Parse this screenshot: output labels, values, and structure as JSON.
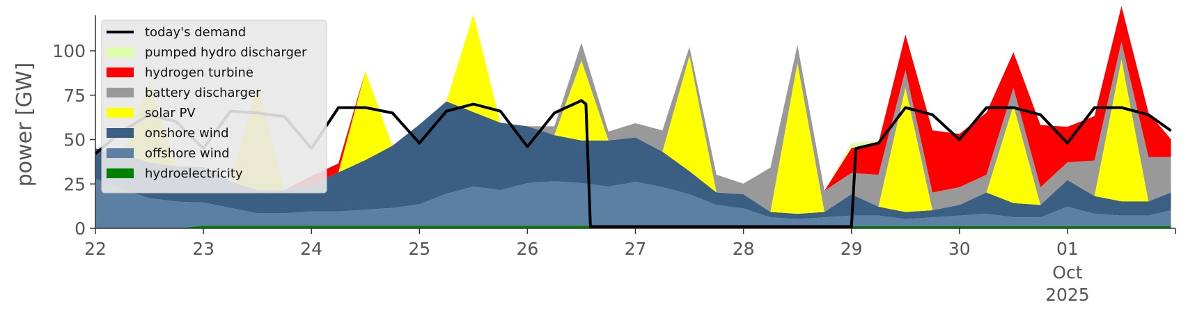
{
  "chart_data": {
    "type": "area",
    "ylabel": "power [GW]",
    "xlabel": "",
    "title": "",
    "ylim": [
      0,
      120
    ],
    "xlim": [
      "2025-09-22",
      "2025-10-02"
    ],
    "y_ticks": [
      0,
      25,
      50,
      75,
      100
    ],
    "x_ticks": [
      {
        "date": "2025-09-22",
        "label": "22"
      },
      {
        "date": "2025-09-23",
        "label": "23"
      },
      {
        "date": "2025-09-24",
        "label": "24"
      },
      {
        "date": "2025-09-25",
        "label": "25"
      },
      {
        "date": "2025-09-26",
        "label": "26"
      },
      {
        "date": "2025-09-27",
        "label": "27"
      },
      {
        "date": "2025-09-28",
        "label": "28"
      },
      {
        "date": "2025-09-29",
        "label": "29"
      },
      {
        "date": "2025-09-30",
        "label": "30"
      },
      {
        "date": "2025-10-01",
        "label": "01",
        "sublabels": [
          "Oct",
          "2025"
        ]
      }
    ],
    "grid": false,
    "legend": "top-left",
    "x": [
      "2025-09-22 00:00",
      "2025-09-22 06:00",
      "2025-09-22 12:00",
      "2025-09-22 18:00",
      "2025-09-23 00:00",
      "2025-09-23 06:00",
      "2025-09-23 12:00",
      "2025-09-23 18:00",
      "2025-09-24 00:00",
      "2025-09-24 06:00",
      "2025-09-24 12:00",
      "2025-09-24 18:00",
      "2025-09-25 00:00",
      "2025-09-25 06:00",
      "2025-09-25 12:00",
      "2025-09-25 18:00",
      "2025-09-26 00:00",
      "2025-09-26 06:00",
      "2025-09-26 12:00",
      "2025-09-26 18:00",
      "2025-09-27 00:00",
      "2025-09-27 06:00",
      "2025-09-27 12:00",
      "2025-09-27 18:00",
      "2025-09-28 00:00",
      "2025-09-28 06:00",
      "2025-09-28 12:00",
      "2025-09-28 18:00",
      "2025-09-29 00:00",
      "2025-09-29 06:00",
      "2025-09-29 12:00",
      "2025-09-29 18:00",
      "2025-09-30 00:00",
      "2025-09-30 06:00",
      "2025-09-30 12:00",
      "2025-09-30 18:00",
      "2025-10-01 00:00",
      "2025-10-01 06:00",
      "2025-10-01 12:00",
      "2025-10-01 18:00",
      "2025-10-01 23:00"
    ],
    "series": [
      {
        "name": "hydroelectricity",
        "color": "#008000",
        "values": [
          0,
          0,
          0,
          0,
          1.5,
          1.5,
          1.5,
          1.5,
          1.5,
          1.5,
          1.5,
          1.5,
          1.5,
          1.5,
          1.5,
          1.5,
          1.5,
          1.5,
          1.5,
          1.5,
          1.2,
          1.2,
          1.2,
          1.2,
          1.2,
          1.2,
          1.2,
          1.2,
          1.2,
          1.2,
          1.2,
          1.2,
          1.2,
          1.2,
          1.2,
          1.2,
          1.2,
          1.2,
          1.2,
          1.2,
          1.2
        ]
      },
      {
        "name": "offshore wind",
        "color": "#5b80a4",
        "values": [
          28,
          22,
          17,
          15,
          13,
          10,
          7,
          7,
          8,
          8,
          9,
          10,
          12,
          18,
          22,
          20,
          24,
          25,
          24,
          22,
          25,
          22,
          18,
          12,
          10,
          5,
          4,
          5,
          6,
          6,
          4,
          5,
          6,
          7,
          5,
          5,
          11,
          7,
          6,
          6,
          9
        ]
      },
      {
        "name": "onshore wind",
        "color": "#3a5f82",
        "values": [
          17,
          20,
          20,
          20,
          20,
          15,
          13,
          13,
          15,
          22,
          28,
          35,
          45,
          52,
          42,
          38,
          32,
          26,
          24,
          26,
          25,
          20,
          13,
          7,
          8,
          3,
          3,
          3,
          12,
          5,
          4,
          4,
          6,
          12,
          8,
          7,
          15,
          10,
          8,
          8,
          10
        ]
      },
      {
        "name": "solar PV",
        "color": "#ffff00",
        "values": [
          0,
          0,
          45,
          0,
          0,
          0,
          60,
          0,
          0,
          0,
          50,
          0,
          0,
          0,
          55,
          0,
          0,
          0,
          45,
          0,
          0,
          0,
          65,
          0,
          0,
          0,
          85,
          0,
          0,
          0,
          70,
          0,
          0,
          0,
          55,
          0,
          0,
          0,
          80,
          0,
          0
        ]
      },
      {
        "name": "battery discharger",
        "color": "#999999",
        "values": [
          0,
          0,
          0,
          0,
          0,
          0,
          0,
          0,
          0,
          0,
          0,
          0,
          0,
          0,
          0,
          0,
          0,
          5,
          10,
          5,
          8,
          12,
          5,
          10,
          6,
          25,
          10,
          12,
          12,
          18,
          10,
          10,
          10,
          10,
          10,
          10,
          10,
          20,
          10,
          25,
          20
        ]
      },
      {
        "name": "hydrogen turbine",
        "color": "#ff0000",
        "values": [
          0,
          0,
          0,
          0,
          0,
          0,
          0,
          0,
          5,
          5,
          0,
          0,
          0,
          0,
          0,
          0,
          0,
          0,
          0,
          0,
          0,
          0,
          0,
          0,
          0,
          0,
          0,
          0,
          14,
          18,
          20,
          35,
          30,
          35,
          20,
          35,
          20,
          25,
          20,
          25,
          10
        ]
      },
      {
        "name": "pumped hydro discharger",
        "color": "#ddffaa",
        "values": [
          0,
          0,
          0,
          0,
          0,
          0,
          0,
          0,
          0,
          0,
          0,
          0,
          0,
          0,
          0,
          0,
          0,
          0,
          0,
          0,
          0,
          0,
          0,
          0,
          0,
          0,
          0,
          0,
          3,
          1,
          0,
          0,
          0,
          0,
          0,
          0,
          0,
          0,
          0,
          0,
          0
        ]
      }
    ],
    "demand": {
      "name": "today's demand",
      "color": "#000000",
      "x": [
        "2025-09-22 00:00",
        "2025-09-22 06:00",
        "2025-09-22 12:00",
        "2025-09-22 18:00",
        "2025-09-23 00:00",
        "2025-09-23 06:00",
        "2025-09-23 12:00",
        "2025-09-23 18:00",
        "2025-09-24 00:00",
        "2025-09-24 06:00",
        "2025-09-24 12:00",
        "2025-09-24 18:00",
        "2025-09-25 00:00",
        "2025-09-25 06:00",
        "2025-09-25 12:00",
        "2025-09-25 18:00",
        "2025-09-26 00:00",
        "2025-09-26 06:00",
        "2025-09-26 12:00",
        "2025-09-26 13:00",
        "2025-09-26 14:00",
        "2025-09-29 00:00",
        "2025-09-29 01:00",
        "2025-09-29 06:00",
        "2025-09-29 12:00",
        "2025-09-29 18:00",
        "2025-09-30 00:00",
        "2025-09-30 06:00",
        "2025-09-30 12:00",
        "2025-09-30 18:00",
        "2025-10-01 00:00",
        "2025-10-01 06:00",
        "2025-10-01 12:00",
        "2025-10-01 18:00",
        "2025-10-01 23:00"
      ],
      "values": [
        42,
        55,
        64,
        60,
        45,
        66,
        65,
        63,
        45,
        68,
        68,
        65,
        48,
        66,
        70,
        66,
        46,
        65,
        72,
        70,
        1,
        1,
        45,
        48,
        68,
        64,
        50,
        68,
        68,
        64,
        48,
        68,
        68,
        64,
        55
      ]
    },
    "legend_entries": [
      {
        "label": "today's demand",
        "kind": "line",
        "color": "#000000"
      },
      {
        "label": "pumped hydro discharger",
        "kind": "patch",
        "color": "#ddffaa"
      },
      {
        "label": "hydrogen turbine",
        "kind": "patch",
        "color": "#ff0000"
      },
      {
        "label": "battery discharger",
        "kind": "patch",
        "color": "#999999"
      },
      {
        "label": "solar PV",
        "kind": "patch",
        "color": "#ffff00"
      },
      {
        "label": "onshore wind",
        "kind": "patch",
        "color": "#3a5f82"
      },
      {
        "label": "offshore wind",
        "kind": "patch",
        "color": "#5b80a4"
      },
      {
        "label": "hydroelectricity",
        "kind": "patch",
        "color": "#008000"
      }
    ]
  }
}
